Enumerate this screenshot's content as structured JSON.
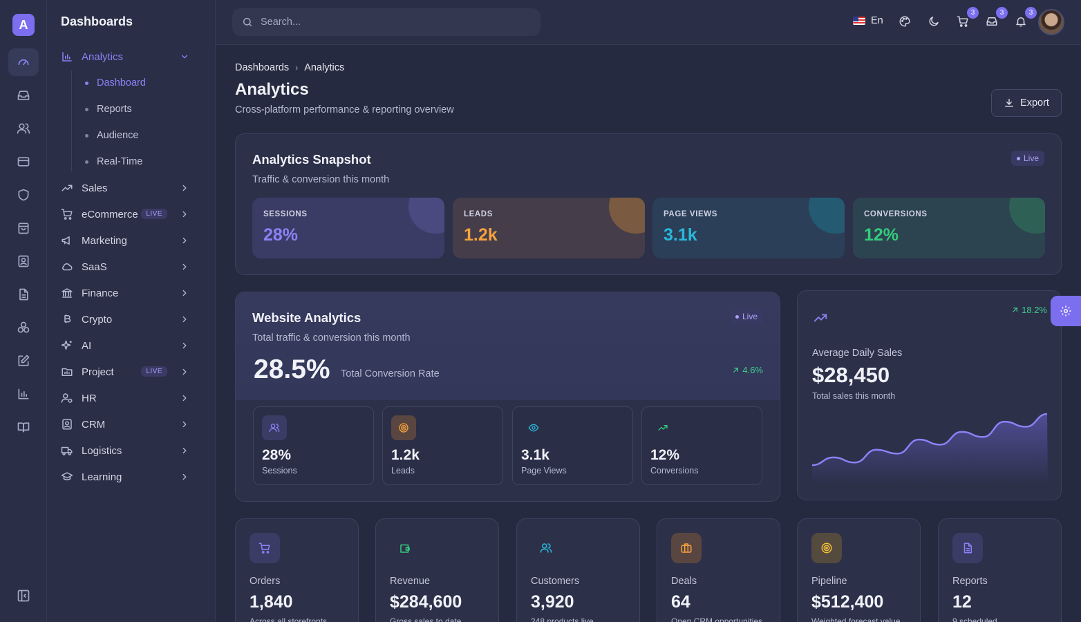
{
  "app": {
    "logo_letter": "A"
  },
  "sidebar": {
    "title": "Dashboards",
    "items": [
      {
        "label": "Analytics",
        "icon": "bar-chart-icon",
        "badge": ""
      },
      {
        "label": "Sales",
        "icon": "trending-up-icon",
        "badge": ""
      },
      {
        "label": "eCommerce",
        "icon": "cart-icon",
        "badge": "LIVE"
      },
      {
        "label": "Marketing",
        "icon": "megaphone-icon",
        "badge": ""
      },
      {
        "label": "SaaS",
        "icon": "cloud-icon",
        "badge": ""
      },
      {
        "label": "Finance",
        "icon": "bank-icon",
        "badge": ""
      },
      {
        "label": "Crypto",
        "icon": "bitcoin-icon",
        "badge": ""
      },
      {
        "label": "AI",
        "icon": "sparkles-icon",
        "badge": ""
      },
      {
        "label": "Project",
        "icon": "kanban-icon",
        "badge": "LIVE"
      },
      {
        "label": "HR",
        "icon": "user-cog-icon",
        "badge": ""
      },
      {
        "label": "CRM",
        "icon": "contact-icon",
        "badge": ""
      },
      {
        "label": "Logistics",
        "icon": "truck-icon",
        "badge": ""
      },
      {
        "label": "Learning",
        "icon": "graduation-cap-icon",
        "badge": ""
      }
    ],
    "analytics_sub": [
      "Dashboard",
      "Reports",
      "Audience",
      "Real-Time"
    ]
  },
  "topbar": {
    "search_placeholder": "Search...",
    "language": "En",
    "cart_count": "3",
    "mail_count": "3",
    "notif_count": "3"
  },
  "breadcrumb": {
    "root": "Dashboards",
    "current": "Analytics"
  },
  "page": {
    "title": "Analytics",
    "subtitle": "Cross-platform performance & reporting overview",
    "export_label": "Export"
  },
  "snapshot": {
    "title": "Analytics Snapshot",
    "subtitle": "Traffic & conversion this month",
    "live_label": "Live",
    "stats": [
      {
        "label": "SESSIONS",
        "value": "28%",
        "color": "#8b82f5"
      },
      {
        "label": "LEADS",
        "value": "1.2k",
        "color": "#f5a23d"
      },
      {
        "label": "PAGE VIEWS",
        "value": "3.1k",
        "color": "#2ab8dc"
      },
      {
        "label": "CONVERSIONS",
        "value": "12%",
        "color": "#33cc7d"
      }
    ]
  },
  "website": {
    "title": "Website Analytics",
    "subtitle": "Total traffic & conversion this month",
    "live_label": "Live",
    "rate": "28.5%",
    "rate_label": "Total Conversion Rate",
    "trend": "4.6%",
    "minis": [
      {
        "value": "28%",
        "label": "Sessions",
        "icon": "users-icon"
      },
      {
        "value": "1.2k",
        "label": "Leads",
        "icon": "target-icon"
      },
      {
        "value": "3.1k",
        "label": "Page Views",
        "icon": "eye-icon"
      },
      {
        "value": "12%",
        "label": "Conversions",
        "icon": "trending-up-icon"
      }
    ]
  },
  "daily_sales": {
    "title": "Average Daily Sales",
    "amount": "$28,450",
    "subtitle": "Total sales this month",
    "trend": "18.2%",
    "series": [
      10,
      16,
      12,
      22,
      19,
      30,
      26,
      36,
      32,
      44,
      40,
      50
    ]
  },
  "kpis": [
    {
      "label": "Orders",
      "value": "1,840",
      "sub": "Across all storefronts",
      "icon": "cart-icon"
    },
    {
      "label": "Revenue",
      "value": "$284,600",
      "sub": "Gross sales to date",
      "icon": "wallet-icon"
    },
    {
      "label": "Customers",
      "value": "3,920",
      "sub": "248 products live",
      "icon": "users-icon"
    },
    {
      "label": "Deals",
      "value": "64",
      "sub": "Open CRM opportunities",
      "icon": "briefcase-icon"
    },
    {
      "label": "Pipeline",
      "value": "$512,400",
      "sub": "Weighted forecast value",
      "icon": "target-icon"
    },
    {
      "label": "Reports",
      "value": "12",
      "sub": "9 scheduled",
      "icon": "file-text-icon"
    }
  ]
}
